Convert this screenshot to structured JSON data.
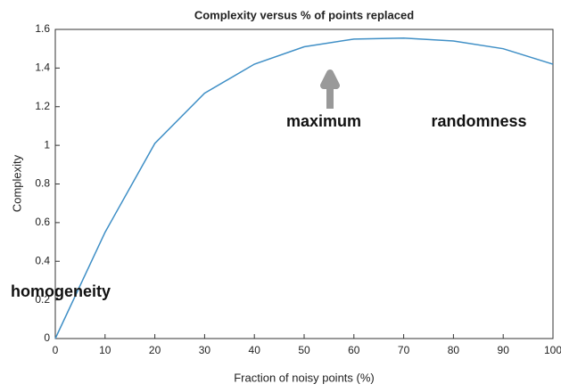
{
  "chart_data": {
    "type": "line",
    "title": "Complexity versus % of points replaced",
    "x_label": "Fraction of noisy points (%)",
    "y_label": "Complexity",
    "x": [
      0,
      10,
      20,
      30,
      40,
      50,
      60,
      70,
      80,
      90,
      100
    ],
    "series": [
      {
        "name": "Complexity",
        "color": "#3f8fc6",
        "values": [
          0,
          0.55,
          1.01,
          1.27,
          1.42,
          1.51,
          1.55,
          1.555,
          1.54,
          1.5,
          1.42
        ]
      }
    ],
    "xlim": [
      0,
      100
    ],
    "xticks": [
      0,
      10,
      20,
      30,
      40,
      50,
      60,
      70,
      80,
      90,
      100
    ],
    "ylim": [
      0,
      1.6
    ],
    "yticks": [
      0,
      0.2,
      0.4,
      0.6,
      0.8,
      1,
      1.2,
      1.4,
      1.6
    ],
    "annotations": [
      "homogeneity",
      "maximum",
      "randomness"
    ]
  }
}
